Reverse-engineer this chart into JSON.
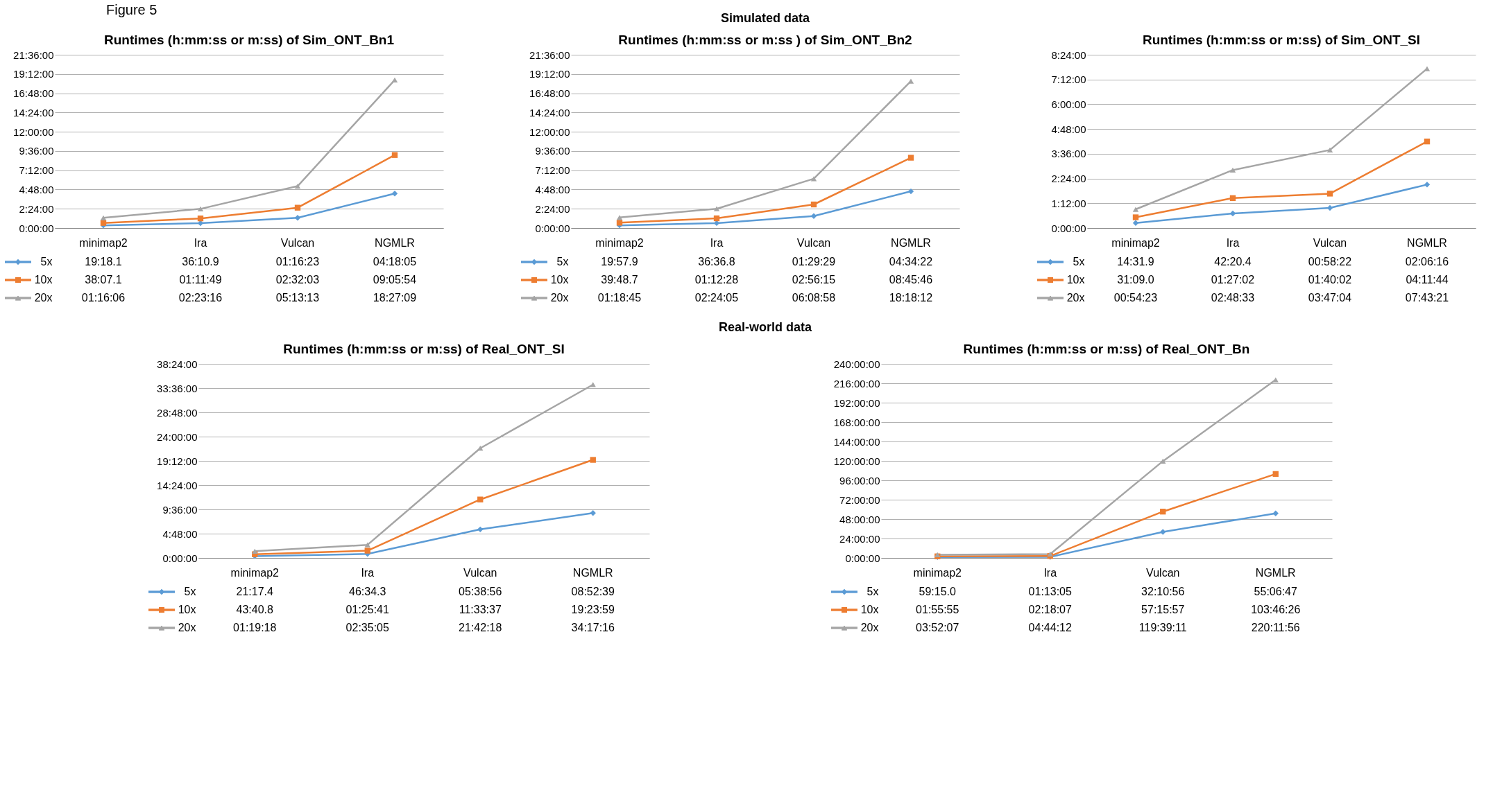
{
  "chart_data": [
    {
      "type": "line",
      "title": "Runtimes (h:mm:ss or m:ss) of Sim_ONT_Bn1",
      "annotations": [
        "Figure 5",
        "Simulated data"
      ],
      "categories": [
        "minimap2",
        "Ira",
        "Vulcan",
        "NGMLR"
      ],
      "series": [
        {
          "name": "5x",
          "color": "#5b9bd5",
          "marker": "diamond",
          "values": [
            0.3217,
            0.603,
            1.2731,
            4.3014
          ],
          "value_labels": [
            "19:18.1",
            "36:10.9",
            "01:16:23",
            "04:18:05"
          ]
        },
        {
          "name": "10x",
          "color": "#ed7d31",
          "marker": "square",
          "values": [
            0.6353,
            1.1969,
            2.5342,
            9.0983
          ],
          "value_labels": [
            "38:07.1",
            "01:11:49",
            "02:32:03",
            "09:05:54"
          ]
        },
        {
          "name": "20x",
          "color": "#a5a5a5",
          "marker": "triangle",
          "values": [
            1.2683,
            2.3878,
            5.2203,
            18.4525
          ],
          "value_labels": [
            "01:16:06",
            "02:23:16",
            "05:13:13",
            "18:27:09"
          ]
        }
      ],
      "ylim": [
        0,
        21.6
      ],
      "yticks": [
        {
          "value": 0,
          "label": "0:00:00"
        },
        {
          "value": 2.4,
          "label": "2:24:00"
        },
        {
          "value": 4.8,
          "label": "4:48:00"
        },
        {
          "value": 7.2,
          "label": "7:12:00"
        },
        {
          "value": 9.6,
          "label": "9:36:00"
        },
        {
          "value": 12,
          "label": "12:00:00"
        },
        {
          "value": 14.4,
          "label": "14:24:00"
        },
        {
          "value": 16.8,
          "label": "16:48:00"
        },
        {
          "value": 19.2,
          "label": "19:12:00"
        },
        {
          "value": 21.6,
          "label": "21:36:00"
        }
      ],
      "grid": "y",
      "legend": "bottom",
      "line_style": "solid"
    },
    {
      "type": "line",
      "title": "Runtimes (h:mm:ss or m:ss ) of Sim_ONT_Bn2",
      "categories": [
        "minimap2",
        "Ira",
        "Vulcan",
        "NGMLR"
      ],
      "series": [
        {
          "name": "5x",
          "color": "#5b9bd5",
          "marker": "diamond",
          "values": [
            0.3328,
            0.6102,
            1.4914,
            4.5728
          ],
          "value_labels": [
            "19:57.9",
            "36:36.8",
            "01:29:29",
            "04:34:22"
          ]
        },
        {
          "name": "10x",
          "color": "#ed7d31",
          "marker": "square",
          "values": [
            0.6635,
            1.2078,
            2.9375,
            8.7628
          ],
          "value_labels": [
            "39:48.7",
            "01:12:28",
            "02:56:15",
            "08:45:46"
          ]
        },
        {
          "name": "20x",
          "color": "#a5a5a5",
          "marker": "triangle",
          "values": [
            1.3125,
            2.4014,
            6.1494,
            18.3033
          ],
          "value_labels": [
            "01:18:45",
            "02:24:05",
            "06:08:58",
            "18:18:12"
          ]
        }
      ],
      "ylim": [
        0,
        21.6
      ],
      "yticks": [
        {
          "value": 0,
          "label": "0:00:00"
        },
        {
          "value": 2.4,
          "label": "2:24:00"
        },
        {
          "value": 4.8,
          "label": "4:48:00"
        },
        {
          "value": 7.2,
          "label": "7:12:00"
        },
        {
          "value": 9.6,
          "label": "9:36:00"
        },
        {
          "value": 12,
          "label": "12:00:00"
        },
        {
          "value": 14.4,
          "label": "14:24:00"
        },
        {
          "value": 16.8,
          "label": "16:48:00"
        },
        {
          "value": 19.2,
          "label": "19:12:00"
        },
        {
          "value": 21.6,
          "label": "21:36:00"
        }
      ],
      "grid": "y",
      "legend": "bottom",
      "line_style": "solid"
    },
    {
      "type": "line",
      "title": "Runtimes (h:mm:ss or m:ss) of Sim_ONT_SI",
      "categories": [
        "minimap2",
        "Ira",
        "Vulcan",
        "NGMLR"
      ],
      "series": [
        {
          "name": "5x",
          "color": "#5b9bd5",
          "marker": "diamond",
          "values": [
            0.2422,
            0.7057,
            0.9728,
            2.1044
          ],
          "value_labels": [
            "14:31.9",
            "42:20.4",
            "00:58:22",
            "02:06:16"
          ]
        },
        {
          "name": "10x",
          "color": "#ed7d31",
          "marker": "square",
          "values": [
            0.5192,
            1.4506,
            1.6672,
            4.1956
          ],
          "value_labels": [
            "31:09.0",
            "01:27:02",
            "01:40:02",
            "04:11:44"
          ]
        },
        {
          "name": "20x",
          "color": "#a5a5a5",
          "marker": "triangle",
          "values": [
            0.9064,
            2.8092,
            3.7844,
            7.7225
          ],
          "value_labels": [
            "00:54:23",
            "02:48:33",
            "03:47:04",
            "07:43:21"
          ]
        }
      ],
      "ylim": [
        0,
        8.4
      ],
      "yticks": [
        {
          "value": 0,
          "label": "0:00:00"
        },
        {
          "value": 1.2,
          "label": "1:12:00"
        },
        {
          "value": 2.4,
          "label": "2:24:00"
        },
        {
          "value": 3.6,
          "label": "3:36:00"
        },
        {
          "value": 4.8,
          "label": "4:48:00"
        },
        {
          "value": 6,
          "label": "6:00:00"
        },
        {
          "value": 7.2,
          "label": "7:12:00"
        },
        {
          "value": 8.4,
          "label": "8:24:00"
        }
      ],
      "grid": "y",
      "legend": "bottom",
      "line_style": "solid"
    },
    {
      "type": "line",
      "title": "Runtimes (h:mm:ss or m:ss) of Real_ONT_SI",
      "annotations": [
        "Real-world data"
      ],
      "categories": [
        "minimap2",
        "Ira",
        "Vulcan",
        "NGMLR"
      ],
      "series": [
        {
          "name": "5x",
          "color": "#5b9bd5",
          "marker": "diamond",
          "values": [
            0.3548,
            0.7762,
            5.6489,
            8.8775
          ],
          "value_labels": [
            "21:17.4",
            "46:34.3",
            "05:38:56",
            "08:52:39"
          ]
        },
        {
          "name": "10x",
          "color": "#ed7d31",
          "marker": "square",
          "values": [
            0.728,
            1.4281,
            11.5603,
            19.3997
          ],
          "value_labels": [
            "43:40.8",
            "01:25:41",
            "11:33:37",
            "19:23:59"
          ]
        },
        {
          "name": "20x",
          "color": "#a5a5a5",
          "marker": "triangle",
          "values": [
            1.3217,
            2.5847,
            21.705,
            34.2878
          ],
          "value_labels": [
            "01:19:18",
            "02:35:05",
            "21:42:18",
            "34:17:16"
          ]
        }
      ],
      "ylim": [
        0,
        38.4
      ],
      "yticks": [
        {
          "value": 0,
          "label": "0:00:00"
        },
        {
          "value": 4.8,
          "label": "4:48:00"
        },
        {
          "value": 9.6,
          "label": "9:36:00"
        },
        {
          "value": 14.4,
          "label": "14:24:00"
        },
        {
          "value": 19.2,
          "label": "19:12:00"
        },
        {
          "value": 24,
          "label": "24:00:00"
        },
        {
          "value": 28.8,
          "label": "28:48:00"
        },
        {
          "value": 33.6,
          "label": "33:36:00"
        },
        {
          "value": 38.4,
          "label": "38:24:00"
        }
      ],
      "grid": "y",
      "legend": "bottom",
      "line_style": "solid"
    },
    {
      "type": "line",
      "title": "Runtimes (h:mm:ss or m:ss) of Real_ONT_Bn",
      "categories": [
        "minimap2",
        "Ira",
        "Vulcan",
        "NGMLR"
      ],
      "series": [
        {
          "name": "5x",
          "color": "#5b9bd5",
          "marker": "diamond",
          "values": [
            0.9875,
            1.2181,
            32.1822,
            55.1131
          ],
          "value_labels": [
            "59:15.0",
            "01:13:05",
            "32:10:56",
            "55:06:47"
          ]
        },
        {
          "name": "10x",
          "color": "#ed7d31",
          "marker": "square",
          "values": [
            1.9319,
            2.3019,
            57.2658,
            103.7739
          ],
          "value_labels": [
            "01:55:55",
            "02:18:07",
            "57:15:57",
            "103:46:26"
          ]
        },
        {
          "name": "20x",
          "color": "#a5a5a5",
          "marker": "triangle",
          "values": [
            3.8686,
            4.7367,
            119.6531,
            220.1989
          ],
          "value_labels": [
            "03:52:07",
            "04:44:12",
            "119:39:11",
            "220:11:56"
          ]
        }
      ],
      "ylim": [
        0,
        240
      ],
      "yticks": [
        {
          "value": 0,
          "label": "0:00:00"
        },
        {
          "value": 24,
          "label": "24:00:00"
        },
        {
          "value": 48,
          "label": "48:00:00"
        },
        {
          "value": 72,
          "label": "72:00:00"
        },
        {
          "value": 96,
          "label": "96:00:00"
        },
        {
          "value": 120,
          "label": "120:00:00"
        },
        {
          "value": 144,
          "label": "144:00:00"
        },
        {
          "value": 168,
          "label": "168:00:00"
        },
        {
          "value": 192,
          "label": "192:00:00"
        },
        {
          "value": 216,
          "label": "216:00:00"
        },
        {
          "value": 240,
          "label": "240:00:00"
        }
      ],
      "grid": "y",
      "legend": "bottom",
      "line_style": "solid"
    }
  ]
}
